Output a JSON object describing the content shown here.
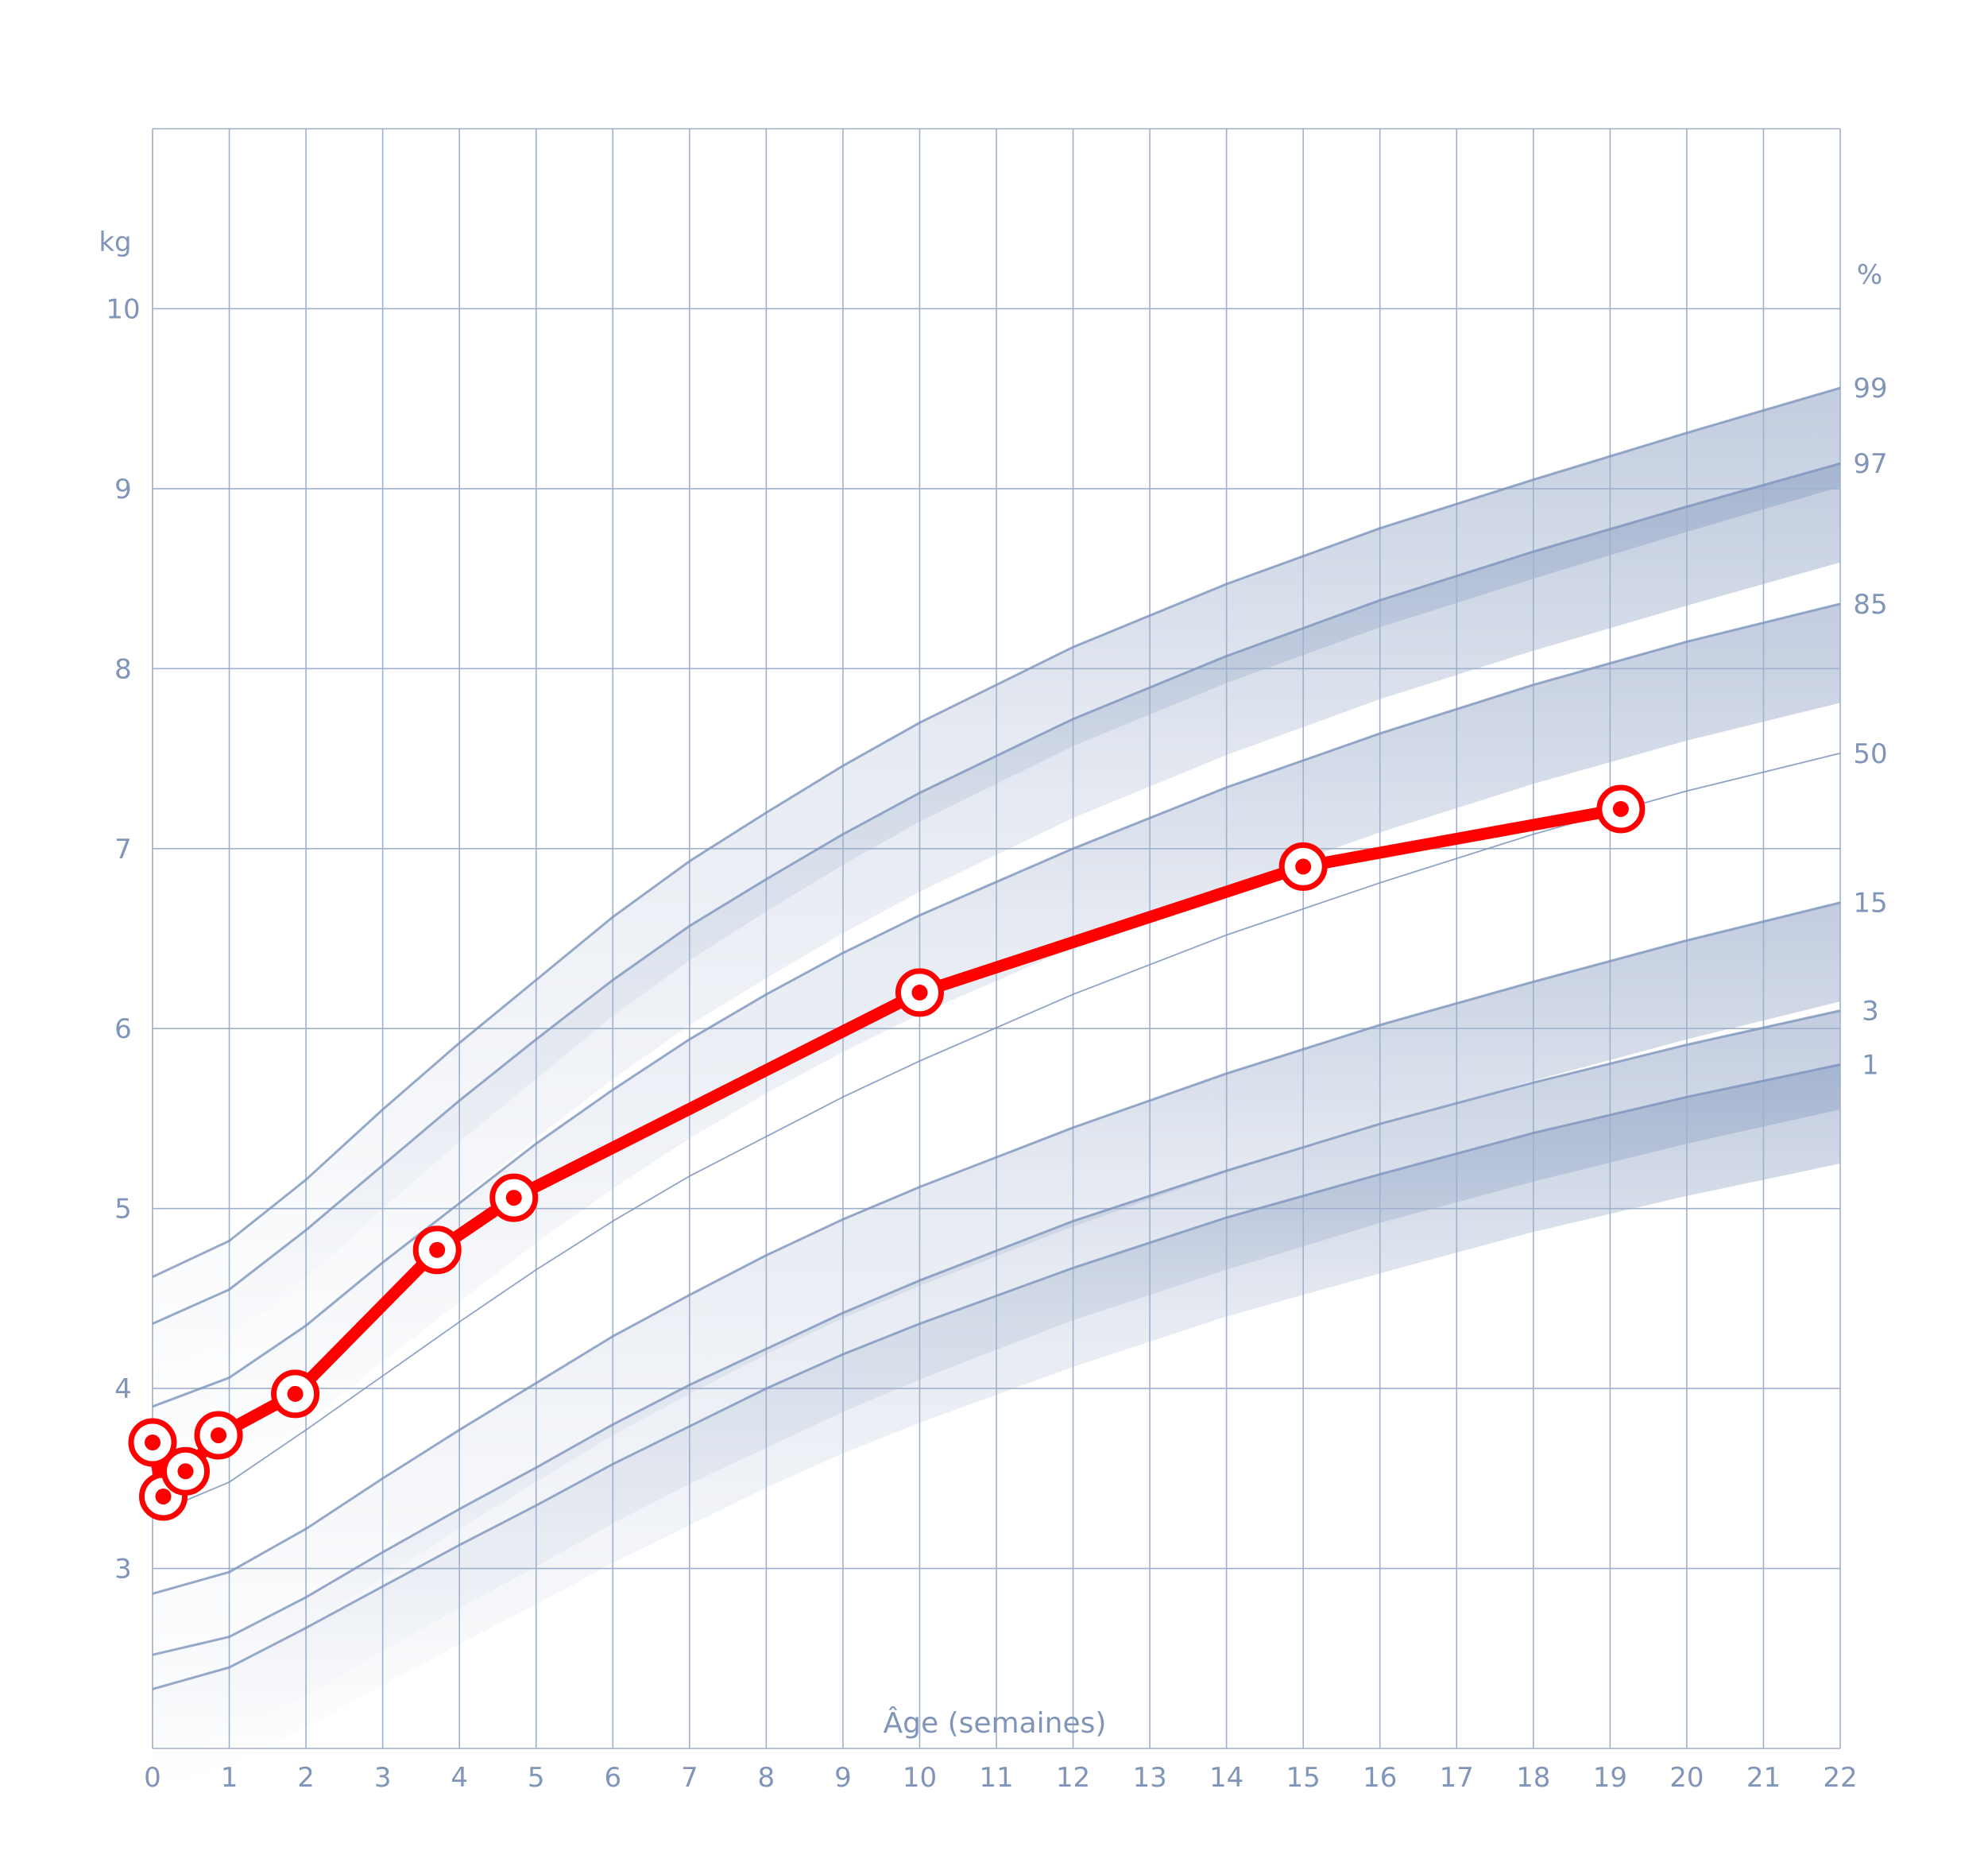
{
  "chart_data": {
    "type": "line",
    "title": "",
    "xlabel": "Âge (semaines)",
    "ylabel": "kg",
    "right_label": "%",
    "xlim": [
      0,
      22
    ],
    "ylim": [
      2,
      11
    ],
    "x_ticks": [
      "0",
      "1",
      "2",
      "3",
      "4",
      "5",
      "6",
      "7",
      "8",
      "9",
      "10",
      "11",
      "12",
      "13",
      "14",
      "15",
      "16",
      "17",
      "18",
      "19",
      "20",
      "21",
      "22"
    ],
    "y_ticks": [
      "3",
      "4",
      "5",
      "6",
      "7",
      "8",
      "9",
      "10"
    ],
    "y_tick_values": [
      3,
      4,
      5,
      6,
      7,
      8,
      9,
      10
    ],
    "grid": true,
    "colors": {
      "grid": "#9fb0cc",
      "band": "#7d93bb",
      "text": "#8095b8",
      "measure": "#ff0000"
    },
    "percentile_x": [
      0,
      1,
      2,
      3,
      4,
      5,
      6,
      7,
      8,
      9,
      10,
      12,
      14,
      16,
      18,
      20,
      22
    ],
    "percentiles": [
      {
        "name": "99",
        "values": [
          4.62,
          4.82,
          5.16,
          5.55,
          5.92,
          6.27,
          6.62,
          6.93,
          7.2,
          7.46,
          7.7,
          8.12,
          8.47,
          8.78,
          9.05,
          9.31,
          9.56
        ]
      },
      {
        "name": "97",
        "values": [
          4.36,
          4.55,
          4.88,
          5.24,
          5.6,
          5.94,
          6.27,
          6.57,
          6.83,
          7.08,
          7.31,
          7.72,
          8.07,
          8.38,
          8.65,
          8.9,
          9.14
        ]
      },
      {
        "name": "85",
        "values": [
          3.9,
          4.06,
          4.35,
          4.7,
          5.03,
          5.36,
          5.66,
          5.94,
          6.19,
          6.42,
          6.63,
          7.0,
          7.34,
          7.64,
          7.91,
          8.15,
          8.36
        ]
      },
      {
        "name": "50",
        "values": [
          3.3,
          3.48,
          3.77,
          4.07,
          4.37,
          4.66,
          4.93,
          5.18,
          5.4,
          5.62,
          5.82,
          6.19,
          6.52,
          6.81,
          7.08,
          7.32,
          7.53
        ]
      },
      {
        "name": "15",
        "values": [
          2.86,
          2.98,
          3.22,
          3.5,
          3.77,
          4.03,
          4.29,
          4.52,
          4.74,
          4.94,
          5.12,
          5.45,
          5.75,
          6.02,
          6.26,
          6.49,
          6.7
        ]
      },
      {
        "name": "3",
        "values": [
          2.52,
          2.62,
          2.84,
          3.09,
          3.33,
          3.56,
          3.8,
          4.02,
          4.22,
          4.42,
          4.6,
          4.93,
          5.21,
          5.47,
          5.7,
          5.91,
          6.1
        ]
      },
      {
        "name": "1",
        "values": [
          2.33,
          2.45,
          2.67,
          2.9,
          3.13,
          3.35,
          3.58,
          3.79,
          4.0,
          4.19,
          4.36,
          4.67,
          4.95,
          5.19,
          5.42,
          5.62,
          5.8
        ]
      }
    ],
    "series": [
      {
        "x": [
          0,
          0.14,
          0.43,
          0.86,
          1.86,
          3.71,
          4.71,
          10.0,
          15.0,
          19.14
        ],
        "values": [
          3.7,
          3.4,
          3.54,
          3.74,
          3.97,
          4.77,
          5.06,
          6.2,
          6.9,
          7.22
        ]
      }
    ]
  }
}
